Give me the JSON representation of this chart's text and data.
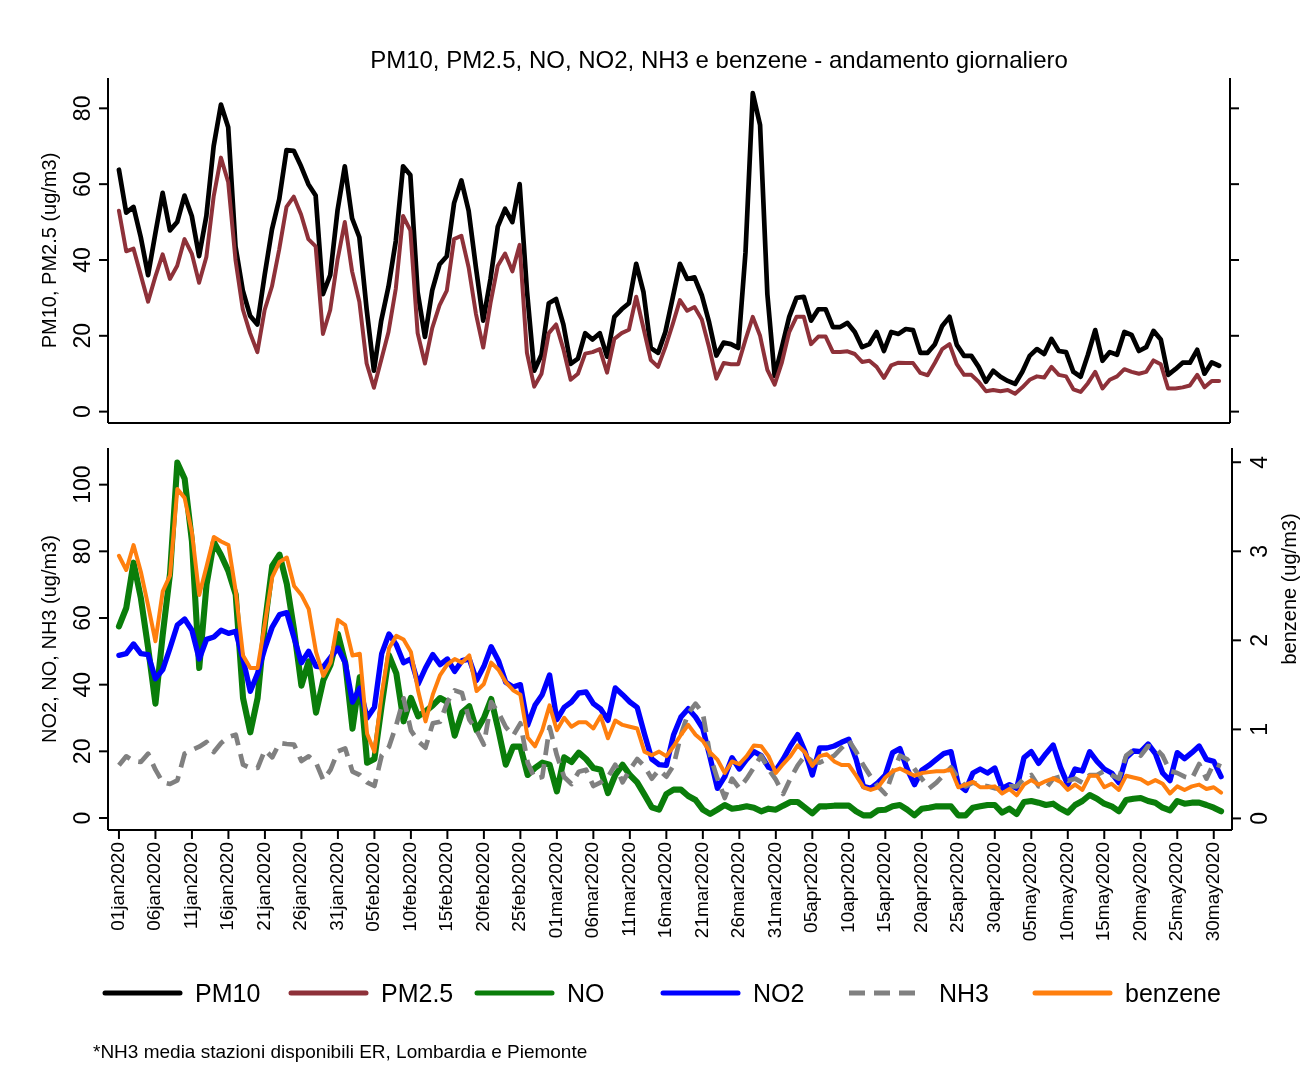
{
  "chart_data": [
    {
      "type": "line",
      "title": "PM10, PM2.5, NO, NO2, NH3 e benzene - andamento giornaliero",
      "ylabel": "PM10, PM2.5 (ug/m3)",
      "xlim": [
        "2019-12-30T12:00",
        "2020-06-01T12:00"
      ],
      "ylim": [
        -3,
        88
      ],
      "yticks": [
        0,
        20,
        40,
        60,
        80
      ],
      "tick_labels": "y",
      "legend": "bottom",
      "line_style": "solid",
      "x": [
        "2020-01-01",
        "2020-01-02",
        "2020-01-03",
        "2020-01-04",
        "2020-01-05",
        "2020-01-06",
        "2020-01-07",
        "2020-01-08",
        "2020-01-09",
        "2020-01-10",
        "2020-01-11",
        "2020-01-12",
        "2020-01-13",
        "2020-01-14",
        "2020-01-15",
        "2020-01-16",
        "2020-01-17",
        "2020-01-18",
        "2020-01-19",
        "2020-01-20",
        "2020-01-21",
        "2020-01-22",
        "2020-01-23",
        "2020-01-24",
        "2020-01-25",
        "2020-01-26",
        "2020-01-27",
        "2020-01-28",
        "2020-01-29",
        "2020-01-30",
        "2020-01-31",
        "2020-02-01",
        "2020-02-02",
        "2020-02-03",
        "2020-02-04",
        "2020-02-05",
        "2020-02-06",
        "2020-02-07",
        "2020-02-08",
        "2020-02-09",
        "2020-02-10",
        "2020-02-11",
        "2020-02-12",
        "2020-02-13",
        "2020-02-14",
        "2020-02-15",
        "2020-02-16",
        "2020-02-17",
        "2020-02-18",
        "2020-02-19",
        "2020-02-20",
        "2020-02-21",
        "2020-02-22",
        "2020-02-23",
        "2020-02-24",
        "2020-02-25",
        "2020-02-26",
        "2020-02-27",
        "2020-02-28",
        "2020-02-29",
        "2020-03-01",
        "2020-03-02",
        "2020-03-03",
        "2020-03-04",
        "2020-03-05",
        "2020-03-06",
        "2020-03-07",
        "2020-03-08",
        "2020-03-09",
        "2020-03-10",
        "2020-03-11",
        "2020-03-12",
        "2020-03-13",
        "2020-03-14",
        "2020-03-15",
        "2020-03-16",
        "2020-03-17",
        "2020-03-18",
        "2020-03-19",
        "2020-03-20",
        "2020-03-21",
        "2020-03-22",
        "2020-03-23",
        "2020-03-24",
        "2020-03-25",
        "2020-03-26",
        "2020-03-27",
        "2020-03-28",
        "2020-03-29",
        "2020-03-30",
        "2020-03-31",
        "2020-04-01",
        "2020-04-02",
        "2020-04-03",
        "2020-04-04",
        "2020-04-05",
        "2020-04-06",
        "2020-04-07",
        "2020-04-08",
        "2020-04-09",
        "2020-04-10",
        "2020-04-11",
        "2020-04-12",
        "2020-04-13",
        "2020-04-14",
        "2020-04-15",
        "2020-04-16",
        "2020-04-17",
        "2020-04-18",
        "2020-04-19",
        "2020-04-20",
        "2020-04-21",
        "2020-04-22",
        "2020-04-23",
        "2020-04-24",
        "2020-04-25",
        "2020-04-26",
        "2020-04-27",
        "2020-04-28",
        "2020-04-29",
        "2020-04-30",
        "2020-05-01",
        "2020-05-02",
        "2020-05-03",
        "2020-05-04",
        "2020-05-05",
        "2020-05-06",
        "2020-05-07",
        "2020-05-08",
        "2020-05-09",
        "2020-05-10",
        "2020-05-11",
        "2020-05-12",
        "2020-05-13",
        "2020-05-14",
        "2020-05-15",
        "2020-05-16",
        "2020-05-17",
        "2020-05-18",
        "2020-05-19",
        "2020-05-20",
        "2020-05-21",
        "2020-05-22",
        "2020-05-23",
        "2020-05-24",
        "2020-05-25",
        "2020-05-26",
        "2020-05-27",
        "2020-05-28",
        "2020-05-29",
        "2020-05-30",
        "2020-05-31"
      ],
      "series": [
        {
          "name": "PM10",
          "color": "#000000",
          "values": [
            63.8,
            52.5,
            54,
            46,
            36,
            47,
            57.7,
            47.8,
            50,
            57,
            51.6,
            41,
            51.6,
            70,
            81,
            75,
            43.6,
            32,
            25.3,
            23,
            36,
            48,
            56,
            69,
            68.8,
            64.7,
            60,
            57,
            31,
            36,
            53,
            64.7,
            51,
            46,
            27,
            10.8,
            24,
            33,
            45,
            64.7,
            62.4,
            31.5,
            19.7,
            32,
            38.8,
            41,
            55,
            61,
            53,
            38,
            24,
            35,
            48.8,
            53.5,
            50,
            60,
            32,
            10.8,
            15,
            28.6,
            29.7,
            23,
            12.6,
            14,
            20.7,
            19,
            20.7,
            14.5,
            25,
            27,
            28.6,
            39,
            31.5,
            16.8,
            15.5,
            21,
            30,
            39,
            35,
            35.4,
            30.7,
            23.6,
            14.8,
            18.2,
            17.8,
            16.8,
            42,
            84,
            75.6,
            31,
            9.4,
            17,
            25,
            30,
            30.3,
            24,
            27,
            27,
            22.3,
            22.3,
            23.4,
            21,
            17,
            17.8,
            21,
            16,
            21,
            20.5,
            21.8,
            21.5,
            15.5,
            15.5,
            17.8,
            22.6,
            25,
            17.6,
            14.7,
            14.7,
            11.8,
            7.9,
            10.8,
            9.2,
            8.1,
            7.3,
            10.5,
            14.7,
            16.5,
            15.2,
            19.2,
            16,
            15.7,
            10.5,
            9.2,
            15,
            21.5,
            13.4,
            15.7,
            15,
            21,
            20.2,
            16,
            17,
            21.3,
            19,
            9.7,
            11.2,
            12.9,
            12.9,
            16.3,
            10,
            13,
            12.1
          ]
        },
        {
          "name": "PM2.5",
          "color": "#8e3139",
          "values": [
            53,
            42.3,
            43,
            36,
            29,
            35.6,
            41.5,
            35,
            38.5,
            45.5,
            41.7,
            34,
            40.8,
            56.7,
            67,
            60.5,
            40,
            27,
            20.7,
            15.7,
            26.8,
            33,
            42.8,
            54,
            56.7,
            52,
            45.5,
            43.6,
            20.5,
            26.8,
            40,
            50,
            37,
            29,
            12.7,
            6.3,
            13.6,
            21,
            32.4,
            51.6,
            47.8,
            20.7,
            12.7,
            22,
            28,
            31.9,
            45.5,
            46.4,
            38,
            25.8,
            16.9,
            28.6,
            38.5,
            41.7,
            37,
            44,
            15.5,
            6.6,
            10,
            20.7,
            23,
            16.5,
            8.4,
            10,
            15.3,
            15.7,
            16.5,
            10.3,
            19.2,
            20.7,
            21.6,
            30.3,
            22,
            13.6,
            11.8,
            17,
            23,
            29.4,
            26.6,
            27.6,
            24.3,
            17,
            8.7,
            12.8,
            12.5,
            12.5,
            19,
            25,
            20,
            11,
            7.1,
            13,
            21,
            25,
            25,
            17.8,
            19.8,
            19.8,
            15.7,
            15.7,
            15.9,
            15.2,
            13.1,
            13.4,
            11.8,
            8.9,
            12.2,
            12.9,
            12.8,
            12.8,
            10.2,
            9.6,
            12.9,
            16.5,
            17.8,
            12.5,
            9.7,
            9.7,
            7.9,
            5.4,
            5.7,
            5.4,
            5.7,
            4.7,
            6.4,
            8.4,
            9.3,
            9,
            11.8,
            9.7,
            9.3,
            5.9,
            5.2,
            7.5,
            10.5,
            6.1,
            8.4,
            9.3,
            11.2,
            10.5,
            10,
            10.5,
            13.5,
            12.5,
            6.1,
            6.1,
            6.4,
            6.9,
            9.7,
            6.4,
            8.1,
            8.1
          ]
        }
      ]
    },
    {
      "type": "line",
      "xlabel": null,
      "ylabel": "NO2, NO, NH3 (ug/m3)",
      "y2label": "benzene (ug/m3)",
      "xlim": [
        "2019-12-30T12:00",
        "2020-06-01T12:00"
      ],
      "ylim": [
        -3.6,
        111
      ],
      "yticks": [
        0,
        20,
        40,
        60,
        80,
        100
      ],
      "y2lim": [
        -0.13,
        4.16
      ],
      "y2ticks": [
        0,
        1,
        2,
        3,
        4
      ],
      "legend": "bottom",
      "line_style": "solid",
      "xticks": [
        {
          "value": "2020-01-01",
          "label": "01jan2020"
        },
        {
          "value": "2020-01-06",
          "label": "06jan2020"
        },
        {
          "value": "2020-01-11",
          "label": "11jan2020"
        },
        {
          "value": "2020-01-16",
          "label": "16jan2020"
        },
        {
          "value": "2020-01-21",
          "label": "21jan2020"
        },
        {
          "value": "2020-01-26",
          "label": "26jan2020"
        },
        {
          "value": "2020-01-31",
          "label": "31jan2020"
        },
        {
          "value": "2020-02-05",
          "label": "05feb2020"
        },
        {
          "value": "2020-02-10",
          "label": "10feb2020"
        },
        {
          "value": "2020-02-15",
          "label": "15feb2020"
        },
        {
          "value": "2020-02-20",
          "label": "20feb2020"
        },
        {
          "value": "2020-02-25",
          "label": "25feb2020"
        },
        {
          "value": "2020-03-01",
          "label": "01mar2020"
        },
        {
          "value": "2020-03-06",
          "label": "06mar2020"
        },
        {
          "value": "2020-03-11",
          "label": "11mar2020"
        },
        {
          "value": "2020-03-16",
          "label": "16mar2020"
        },
        {
          "value": "2020-03-21",
          "label": "21mar2020"
        },
        {
          "value": "2020-03-26",
          "label": "26mar2020"
        },
        {
          "value": "2020-03-31",
          "label": "31mar2020"
        },
        {
          "value": "2020-04-05",
          "label": "05apr2020"
        },
        {
          "value": "2020-04-10",
          "label": "10apr2020"
        },
        {
          "value": "2020-04-15",
          "label": "15apr2020"
        },
        {
          "value": "2020-04-20",
          "label": "20apr2020"
        },
        {
          "value": "2020-04-25",
          "label": "25apr2020"
        },
        {
          "value": "2020-04-30",
          "label": "30apr2020"
        },
        {
          "value": "2020-05-05",
          "label": "05may2020"
        },
        {
          "value": "2020-05-10",
          "label": "10may2020"
        },
        {
          "value": "2020-05-15",
          "label": "15may2020"
        },
        {
          "value": "2020-05-20",
          "label": "20may2020"
        },
        {
          "value": "2020-05-25",
          "label": "25may2020"
        },
        {
          "value": "2020-05-30",
          "label": "30may2020"
        }
      ],
      "annotations": [
        "*NH3 media stazioni disponibili ER, Lombardia e Piemonte"
      ],
      "x": [
        "2020-01-01",
        "2020-01-02",
        "2020-01-03",
        "2020-01-04",
        "2020-01-05",
        "2020-01-06",
        "2020-01-07",
        "2020-01-08",
        "2020-01-09",
        "2020-01-10",
        "2020-01-11",
        "2020-01-12",
        "2020-01-13",
        "2020-01-14",
        "2020-01-15",
        "2020-01-16",
        "2020-01-17",
        "2020-01-18",
        "2020-01-19",
        "2020-01-20",
        "2020-01-21",
        "2020-01-22",
        "2020-01-23",
        "2020-01-24",
        "2020-01-25",
        "2020-01-26",
        "2020-01-27",
        "2020-01-28",
        "2020-01-29",
        "2020-01-30",
        "2020-01-31",
        "2020-02-01",
        "2020-02-02",
        "2020-02-03",
        "2020-02-04",
        "2020-02-05",
        "2020-02-06",
        "2020-02-07",
        "2020-02-08",
        "2020-02-09",
        "2020-02-10",
        "2020-02-11",
        "2020-02-12",
        "2020-02-13",
        "2020-02-14",
        "2020-02-15",
        "2020-02-16",
        "2020-02-17",
        "2020-02-18",
        "2020-02-19",
        "2020-02-20",
        "2020-02-21",
        "2020-02-22",
        "2020-02-23",
        "2020-02-24",
        "2020-02-25",
        "2020-02-26",
        "2020-02-27",
        "2020-02-28",
        "2020-02-29",
        "2020-03-01",
        "2020-03-02",
        "2020-03-03",
        "2020-03-04",
        "2020-03-05",
        "2020-03-06",
        "2020-03-07",
        "2020-03-08",
        "2020-03-09",
        "2020-03-10",
        "2020-03-11",
        "2020-03-12",
        "2020-03-13",
        "2020-03-14",
        "2020-03-15",
        "2020-03-16",
        "2020-03-17",
        "2020-03-18",
        "2020-03-19",
        "2020-03-20",
        "2020-03-21",
        "2020-03-22",
        "2020-03-23",
        "2020-03-24",
        "2020-03-25",
        "2020-03-26",
        "2020-03-27",
        "2020-03-28",
        "2020-03-29",
        "2020-03-30",
        "2020-03-31",
        "2020-04-01",
        "2020-04-02",
        "2020-04-03",
        "2020-04-04",
        "2020-04-05",
        "2020-04-06",
        "2020-04-07",
        "2020-04-08",
        "2020-04-09",
        "2020-04-10",
        "2020-04-11",
        "2020-04-12",
        "2020-04-13",
        "2020-04-14",
        "2020-04-15",
        "2020-04-16",
        "2020-04-17",
        "2020-04-18",
        "2020-04-19",
        "2020-04-20",
        "2020-04-21",
        "2020-04-22",
        "2020-04-23",
        "2020-04-24",
        "2020-04-25",
        "2020-04-26",
        "2020-04-27",
        "2020-04-28",
        "2020-04-29",
        "2020-04-30",
        "2020-05-01",
        "2020-05-02",
        "2020-05-03",
        "2020-05-04",
        "2020-05-05",
        "2020-05-06",
        "2020-05-07",
        "2020-05-08",
        "2020-05-09",
        "2020-05-10",
        "2020-05-11",
        "2020-05-12",
        "2020-05-13",
        "2020-05-14",
        "2020-05-15",
        "2020-05-16",
        "2020-05-17",
        "2020-05-18",
        "2020-05-19",
        "2020-05-20",
        "2020-05-21",
        "2020-05-22",
        "2020-05-23",
        "2020-05-24",
        "2020-05-25",
        "2020-05-26",
        "2020-05-27",
        "2020-05-28",
        "2020-05-29",
        "2020-05-30",
        "2020-05-31"
      ],
      "series": [
        {
          "name": "NO",
          "color": "#0a7d0a",
          "values": [
            57.5,
            63,
            76.6,
            66,
            51,
            34.3,
            55,
            73.4,
            106.6,
            101.8,
            83,
            45,
            70,
            82.8,
            78.8,
            74,
            67,
            36,
            25.7,
            36,
            58.4,
            75.6,
            79,
            70.2,
            56.3,
            39.7,
            47,
            31.6,
            41.3,
            46,
            55.2,
            46.6,
            26.8,
            42.3,
            16.6,
            17.7,
            33.8,
            48.8,
            43.4,
            29,
            36,
            30.5,
            32,
            33.8,
            36,
            34.8,
            24.7,
            31.6,
            33.5,
            26.3,
            30,
            35.7,
            26.3,
            16,
            21.4,
            21.4,
            12.9,
            15,
            16.6,
            16,
            8,
            18.2,
            16.8,
            19.6,
            17.7,
            15,
            14.5,
            7.5,
            12.9,
            16,
            12.9,
            10.7,
            7,
            3.2,
            2.5,
            7.2,
            8.5,
            8.5,
            6.6,
            5.4,
            2.5,
            1.2,
            2.5,
            3.9,
            2.8,
            3.1,
            3.5,
            3.1,
            2,
            2.8,
            2.5,
            3.7,
            4.8,
            4.8,
            3.1,
            1.4,
            3.5,
            3.5,
            3.7,
            3.7,
            3.7,
            2,
            0.8,
            0.8,
            2.3,
            2.5,
            3.5,
            3.9,
            2.5,
            0.8,
            2.8,
            3.1,
            3.5,
            3.5,
            3.5,
            0.8,
            0.8,
            3.1,
            3.5,
            3.9,
            3.9,
            1.6,
            2.8,
            1.2,
            4.8,
            5.1,
            4.6,
            3.9,
            4.3,
            2.8,
            1.6,
            3.9,
            5.1,
            6.9,
            5.8,
            4.3,
            3.5,
            2,
            5.4,
            5.8,
            6,
            5.1,
            4.6,
            3.1,
            2.3,
            5.1,
            4.3,
            4.6,
            4.6,
            3.9,
            3.1,
            2
          ]
        },
        {
          "name": "NO2",
          "color": "#0000ff",
          "values": [
            48.8,
            49.3,
            52.2,
            49.3,
            49,
            41.8,
            44.5,
            51,
            57.9,
            59.7,
            56.3,
            47.7,
            53.6,
            54.3,
            56.3,
            55.4,
            56,
            47.7,
            38,
            43.4,
            51,
            57.3,
            61,
            61.6,
            54,
            46.6,
            50,
            45.5,
            45.3,
            48.2,
            51,
            46.6,
            34.8,
            39,
            30,
            33.2,
            49.3,
            55.2,
            52,
            46.6,
            47.7,
            40.2,
            45,
            49,
            46,
            47.7,
            44,
            47.2,
            47.7,
            41.3,
            45.5,
            51.4,
            47.2,
            40.7,
            39.3,
            40,
            27.9,
            33.8,
            37,
            42.9,
            29.5,
            33.2,
            34.8,
            37.5,
            37.8,
            34.3,
            32.7,
            29.3,
            39,
            37,
            34.8,
            33.2,
            25.2,
            17.7,
            16,
            15.8,
            25,
            30.3,
            32.8,
            30.3,
            26.8,
            18.1,
            8.9,
            12.4,
            18.1,
            14.7,
            17.6,
            19.9,
            18.7,
            15.2,
            14.3,
            17.6,
            21.6,
            25,
            19.9,
            12.9,
            21,
            21,
            21.6,
            22.7,
            23.6,
            17.6,
            9.5,
            8.9,
            10.6,
            12.9,
            19.6,
            20.8,
            14.7,
            10,
            14.3,
            15.8,
            17.6,
            19.3,
            19.9,
            10,
            8.3,
            13.5,
            14.7,
            13.5,
            15,
            8.9,
            10,
            8.9,
            18.1,
            19.9,
            16.4,
            19.3,
            21.9,
            15.2,
            10,
            14.7,
            14.1,
            19.9,
            17,
            14.7,
            13.5,
            10.6,
            18.1,
            20.1,
            19.9,
            22.2,
            19.3,
            13.5,
            11.2,
            19.6,
            17.8,
            19.6,
            21.6,
            17.6,
            17,
            12.4
          ]
        },
        {
          "name": "NH3",
          "color": "#808080",
          "line_style": "dashed",
          "values": [
            15.8,
            18.5,
            17.1,
            16.8,
            19.3,
            14.5,
            10.7,
            10.2,
            11.3,
            19.3,
            20.4,
            21.4,
            22.8,
            19.8,
            22.5,
            24.3,
            25,
            16,
            15,
            15,
            20.4,
            18.2,
            22.5,
            22.2,
            22,
            17.1,
            18.5,
            16.6,
            11.3,
            14.5,
            20,
            20.9,
            13.9,
            12.9,
            10.7,
            9.6,
            18.8,
            21.4,
            27.9,
            35.9,
            26.3,
            23,
            21.1,
            28.4,
            28.9,
            34.8,
            38.3,
            37.5,
            29.5,
            26.3,
            22,
            34.8,
            31.6,
            27.3,
            24.7,
            28.4,
            16.6,
            11.8,
            12.3,
            27.3,
            18.8,
            12.3,
            10.2,
            13.9,
            14.5,
            9.6,
            10.7,
            12.3,
            16,
            10.7,
            14.5,
            17.7,
            15.5,
            11.8,
            14.5,
            12.4,
            15.8,
            25,
            31.4,
            34.3,
            31.4,
            18.7,
            11.8,
            6,
            11.8,
            8.9,
            11.8,
            15.2,
            18.7,
            14.7,
            11.5,
            7.2,
            11.8,
            15.8,
            18.7,
            17,
            16.6,
            17.6,
            18.7,
            21,
            23.3,
            19.9,
            15.8,
            12.4,
            9.5,
            7.2,
            13.5,
            18.7,
            17.6,
            14.7,
            11.8,
            8.9,
            10.6,
            12.9,
            15.2,
            11.8,
            9.5,
            10.6,
            10,
            9.5,
            8.9,
            8.9,
            9.5,
            9.5,
            11.8,
            12.9,
            9.5,
            8.9,
            11.8,
            12.4,
            11.2,
            11.8,
            10.6,
            12.9,
            12.9,
            14.1,
            12.9,
            11.8,
            18.7,
            20.4,
            18.7,
            21.6,
            21,
            18.7,
            14.1,
            13.5,
            12.4,
            11.8,
            16.2,
            11.8,
            16.4,
            15.5
          ]
        },
        {
          "name": "benzene",
          "color": "#ff7f0e",
          "axis": "y2",
          "values": [
            2.95,
            2.79,
            3.07,
            2.77,
            2.39,
            1.99,
            2.55,
            2.73,
            3.7,
            3.6,
            3.21,
            2.51,
            2.83,
            3.16,
            3.11,
            3.07,
            2.55,
            1.83,
            1.69,
            1.69,
            2.19,
            2.71,
            2.88,
            2.93,
            2.61,
            2.51,
            2.35,
            1.87,
            1.6,
            1.75,
            2.23,
            2.17,
            1.83,
            1.85,
            0.95,
            0.75,
            1.39,
            1.91,
            2.05,
            2.01,
            1.87,
            1.43,
            1.09,
            1.39,
            1.61,
            1.73,
            1.79,
            1.75,
            1.83,
            1.43,
            1.51,
            1.75,
            1.67,
            1.53,
            1.44,
            1.39,
            0.91,
            0.81,
            0.99,
            1.27,
            0.99,
            1.13,
            1.03,
            1.08,
            1.08,
            1.01,
            1.15,
            0.9,
            1.1,
            1.05,
            1.03,
            1.01,
            0.75,
            0.71,
            0.75,
            0.7,
            0.81,
            0.94,
            1.05,
            0.94,
            0.87,
            0.74,
            0.66,
            0.51,
            0.64,
            0.61,
            0.7,
            0.82,
            0.81,
            0.7,
            0.51,
            0.61,
            0.7,
            0.82,
            0.74,
            0.59,
            0.7,
            0.72,
            0.64,
            0.6,
            0.6,
            0.48,
            0.35,
            0.32,
            0.35,
            0.46,
            0.53,
            0.56,
            0.52,
            0.48,
            0.51,
            0.52,
            0.53,
            0.53,
            0.55,
            0.35,
            0.38,
            0.41,
            0.35,
            0.35,
            0.36,
            0.28,
            0.33,
            0.26,
            0.38,
            0.43,
            0.38,
            0.42,
            0.45,
            0.41,
            0.32,
            0.38,
            0.32,
            0.48,
            0.48,
            0.35,
            0.39,
            0.32,
            0.48,
            0.46,
            0.44,
            0.39,
            0.43,
            0.39,
            0.28,
            0.36,
            0.32,
            0.36,
            0.38,
            0.33,
            0.35,
            0.29
          ]
        }
      ]
    }
  ]
}
